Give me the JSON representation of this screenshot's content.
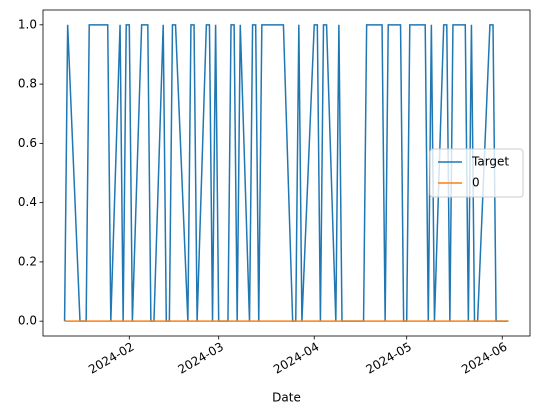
{
  "chart_data": {
    "type": "line",
    "xlabel": "Date",
    "x": [
      "2024-01-11",
      "2024-01-12",
      "2024-01-16",
      "2024-01-17",
      "2024-01-18",
      "2024-01-19",
      "2024-01-22",
      "2024-01-23",
      "2024-01-24",
      "2024-01-25",
      "2024-01-26",
      "2024-01-29",
      "2024-01-30",
      "2024-01-31",
      "2024-02-01",
      "2024-02-02",
      "2024-02-05",
      "2024-02-06",
      "2024-02-07",
      "2024-02-08",
      "2024-02-09",
      "2024-02-12",
      "2024-02-13",
      "2024-02-14",
      "2024-02-15",
      "2024-02-16",
      "2024-02-20",
      "2024-02-21",
      "2024-02-22",
      "2024-02-23",
      "2024-02-26",
      "2024-02-27",
      "2024-02-28",
      "2024-02-29",
      "2024-03-01",
      "2024-03-04",
      "2024-03-05",
      "2024-03-06",
      "2024-03-07",
      "2024-03-08",
      "2024-03-11",
      "2024-03-12",
      "2024-03-13",
      "2024-03-14",
      "2024-03-15",
      "2024-03-18",
      "2024-03-19",
      "2024-03-20",
      "2024-03-21",
      "2024-03-22",
      "2024-03-25",
      "2024-03-26",
      "2024-03-27",
      "2024-03-28",
      "2024-04-01",
      "2024-04-02",
      "2024-04-03",
      "2024-04-04",
      "2024-04-05",
      "2024-04-08",
      "2024-04-09",
      "2024-04-10",
      "2024-04-11",
      "2024-04-12",
      "2024-04-15",
      "2024-04-16",
      "2024-04-17",
      "2024-04-18",
      "2024-04-19",
      "2024-04-22",
      "2024-04-23",
      "2024-04-24",
      "2024-04-25",
      "2024-04-26",
      "2024-04-29",
      "2024-04-30",
      "2024-05-01",
      "2024-05-02",
      "2024-05-03",
      "2024-05-06",
      "2024-05-07",
      "2024-05-08",
      "2024-05-09",
      "2024-05-10",
      "2024-05-13",
      "2024-05-14",
      "2024-05-15",
      "2024-05-16",
      "2024-05-17",
      "2024-05-20",
      "2024-05-21",
      "2024-05-22",
      "2024-05-23",
      "2024-05-24",
      "2024-05-28",
      "2024-05-29",
      "2024-05-30",
      "2024-05-31",
      "2024-06-03"
    ],
    "series": [
      {
        "name": "Target",
        "color": "#1f77b4",
        "values": [
          0,
          1,
          0,
          0,
          0,
          1,
          1,
          1,
          1,
          1,
          0,
          1,
          0,
          1,
          1,
          0,
          1,
          1,
          1,
          0,
          0,
          1,
          0,
          0,
          1,
          1,
          0,
          1,
          1,
          0,
          1,
          1,
          0,
          1,
          0,
          0,
          1,
          1,
          0,
          1,
          0,
          1,
          1,
          0,
          1,
          1,
          1,
          1,
          1,
          1,
          0,
          0,
          1,
          0,
          1,
          1,
          0,
          1,
          1,
          0,
          1,
          0,
          0,
          0,
          0,
          0,
          0,
          1,
          1,
          1,
          1,
          0,
          1,
          1,
          1,
          0,
          0,
          1,
          1,
          1,
          1,
          0,
          1,
          0,
          1,
          1,
          0,
          1,
          1,
          1,
          0,
          1,
          0,
          0,
          1,
          1,
          0,
          0,
          0
        ]
      },
      {
        "name": "0",
        "color": "#ff7f0e",
        "values": [
          0,
          0,
          0,
          0,
          0,
          0,
          0,
          0,
          0,
          0,
          0,
          0,
          0,
          0,
          0,
          0,
          0,
          0,
          0,
          0,
          0,
          0,
          0,
          0,
          0,
          0,
          0,
          0,
          0,
          0,
          0,
          0,
          0,
          0,
          0,
          0,
          0,
          0,
          0,
          0,
          0,
          0,
          0,
          0,
          0,
          0,
          0,
          0,
          0,
          0,
          0,
          0,
          0,
          0,
          0,
          0,
          0,
          0,
          0,
          0,
          0,
          0,
          0,
          0,
          0,
          0,
          0,
          0,
          0,
          0,
          0,
          0,
          0,
          0,
          0,
          0,
          0,
          0,
          0,
          0,
          0,
          0,
          0,
          0,
          0,
          0,
          0,
          0,
          0,
          0,
          0,
          0,
          0,
          0,
          0,
          0,
          0,
          0,
          0
        ]
      }
    ],
    "xlim": [
      "2024-01-04",
      "2024-06-10"
    ],
    "xticks": [
      {
        "value": "2024-02-01",
        "label": "2024-02"
      },
      {
        "value": "2024-03-01",
        "label": "2024-03"
      },
      {
        "value": "2024-04-01",
        "label": "2024-04"
      },
      {
        "value": "2024-05-01",
        "label": "2024-05"
      },
      {
        "value": "2024-06-01",
        "label": "2024-06"
      }
    ],
    "ylim": [
      -0.05,
      1.05
    ],
    "yticks": [
      {
        "value": 0,
        "label": "0.0"
      },
      {
        "value": 0.2,
        "label": "0.2"
      },
      {
        "value": 0.4,
        "label": "0.4"
      },
      {
        "value": 0.6,
        "label": "0.6"
      },
      {
        "value": 0.8,
        "label": "0.8"
      },
      {
        "value": 1,
        "label": "1.0"
      }
    ],
    "legend": "center right"
  }
}
